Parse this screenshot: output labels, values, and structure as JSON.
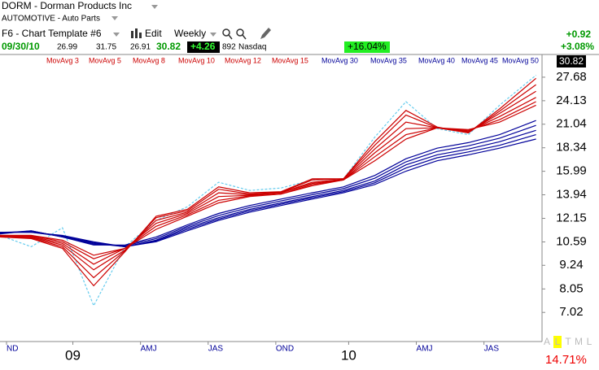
{
  "chart_data": {
    "type": "line",
    "header": {
      "symbol": "DORM - Dorman Products Inc",
      "industry": "AUTOMOTIVE - Auto Parts",
      "template": "F6 - Chart Template #6",
      "edit": "Edit",
      "period": "Weekly",
      "date": "09/30/10",
      "open": "26.99",
      "high": "31.75",
      "low": "26.91",
      "last": "30.82",
      "change": "+4.26",
      "volume": "892",
      "exchange": "Nasdaq",
      "period_change": "+16.04%",
      "day_change": "+0.92",
      "day_change_pct": "+3.08%",
      "tabs": [
        "A",
        "L",
        "T",
        "M",
        "L"
      ],
      "bottom_pct": "14.71%"
    },
    "x": [
      0,
      6,
      12,
      18,
      24,
      30,
      36,
      42,
      48,
      54,
      60,
      66,
      72,
      78,
      84,
      90,
      96,
      103
    ],
    "xlim": [
      0,
      104
    ],
    "xticks": [
      {
        "value": 1.25,
        "label": "ND"
      },
      {
        "value": 14,
        "label": "09"
      },
      {
        "value": 27,
        "label": "AMJ"
      },
      {
        "value": 40,
        "label": "JAS"
      },
      {
        "value": 53,
        "label": "OND"
      },
      {
        "value": 67,
        "label": "10"
      },
      {
        "value": 80,
        "label": "AMJ"
      },
      {
        "value": 93,
        "label": "JAS"
      }
    ],
    "ylim": [
      5.98,
      31.45
    ],
    "yticks": [
      7.02,
      8.05,
      9.24,
      10.59,
      12.15,
      13.94,
      15.99,
      18.34,
      21.04,
      24.13,
      27.68
    ],
    "log_scale": true,
    "grid": false,
    "price": {
      "color": "#66ccee",
      "values": [
        11.0,
        10.3,
        11.5,
        7.3,
        10.3,
        12.0,
        13.0,
        15.0,
        14.3,
        14.5,
        15.2,
        15.3,
        19.5,
        24.0,
        20.5,
        19.8,
        23.5,
        28.0
      ]
    },
    "series": [
      {
        "name": "MovAvg 3",
        "color": "#cc0000",
        "values": [
          10.9,
          10.8,
          10.2,
          8.2,
          10.0,
          12.3,
          12.8,
          14.6,
          14.1,
          14.2,
          15.3,
          15.3,
          19.0,
          22.8,
          20.7,
          20.0,
          23.0,
          27.5
        ]
      },
      {
        "name": "MovAvg 5",
        "color": "#cc0000",
        "values": [
          10.9,
          10.85,
          10.3,
          8.6,
          10.05,
          12.2,
          12.7,
          14.4,
          14.0,
          14.15,
          15.2,
          15.3,
          18.6,
          22.2,
          20.6,
          20.0,
          22.7,
          26.5
        ]
      },
      {
        "name": "MovAvg 8",
        "color": "#cc0000",
        "values": [
          10.95,
          10.9,
          10.4,
          9.0,
          10.1,
          12.0,
          12.6,
          14.1,
          13.95,
          14.1,
          15.0,
          15.25,
          18.2,
          21.3,
          20.6,
          20.1,
          22.4,
          25.5
        ]
      },
      {
        "name": "MovAvg 10",
        "color": "#cc0000",
        "values": [
          11.0,
          10.95,
          10.5,
          9.3,
          10.2,
          11.8,
          12.5,
          13.8,
          13.9,
          14.1,
          14.9,
          15.2,
          17.8,
          20.5,
          20.6,
          20.2,
          22.0,
          24.6
        ]
      },
      {
        "name": "MovAvg 12",
        "color": "#cc0000",
        "values": [
          11.0,
          11.0,
          10.6,
          9.6,
          10.2,
          11.6,
          12.4,
          13.5,
          13.85,
          14.0,
          14.8,
          15.2,
          17.4,
          19.8,
          20.6,
          20.3,
          21.6,
          24.0
        ]
      },
      {
        "name": "MovAvg 15",
        "color": "#cc0000",
        "values": [
          11.0,
          11.0,
          10.7,
          9.8,
          10.2,
          11.4,
          12.3,
          13.3,
          13.8,
          14.0,
          14.7,
          15.2,
          17.0,
          19.3,
          20.6,
          20.4,
          21.3,
          23.5
        ]
      },
      {
        "name": "MovAvg 30",
        "color": "#000099",
        "values": [
          11.1,
          11.3,
          10.9,
          10.4,
          10.4,
          10.9,
          11.7,
          12.5,
          13.1,
          13.6,
          14.1,
          14.6,
          15.6,
          17.2,
          18.3,
          18.9,
          19.8,
          21.5
        ]
      },
      {
        "name": "MovAvg 35",
        "color": "#000099",
        "values": [
          11.15,
          11.3,
          10.9,
          10.45,
          10.35,
          10.8,
          11.6,
          12.35,
          12.95,
          13.45,
          13.95,
          14.45,
          15.35,
          16.9,
          17.95,
          18.55,
          19.4,
          20.9
        ]
      },
      {
        "name": "MovAvg 40",
        "color": "#000099",
        "values": [
          11.2,
          11.25,
          10.95,
          10.5,
          10.3,
          10.7,
          11.5,
          12.2,
          12.8,
          13.3,
          13.8,
          14.3,
          15.1,
          16.6,
          17.6,
          18.2,
          19.0,
          20.3
        ]
      },
      {
        "name": "MovAvg 45",
        "color": "#000099",
        "values": [
          11.2,
          11.2,
          10.95,
          10.55,
          10.3,
          10.65,
          11.4,
          12.1,
          12.7,
          13.2,
          13.7,
          14.2,
          14.95,
          16.3,
          17.3,
          17.9,
          18.6,
          19.8
        ]
      },
      {
        "name": "MovAvg 50",
        "color": "#000099",
        "values": [
          11.2,
          11.2,
          11.0,
          10.6,
          10.3,
          10.6,
          11.3,
          12.0,
          12.6,
          13.1,
          13.6,
          14.1,
          14.8,
          16.0,
          17.0,
          17.6,
          18.3,
          19.3
        ]
      }
    ]
  }
}
